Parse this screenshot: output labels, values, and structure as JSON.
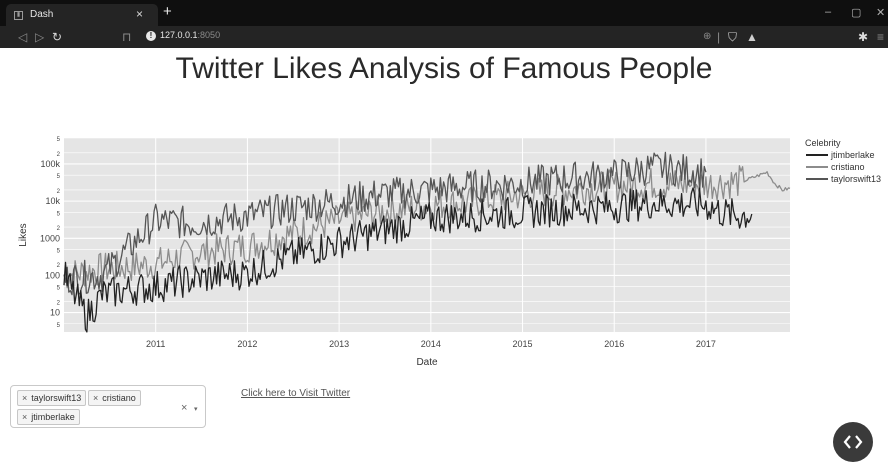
{
  "browser": {
    "tab_title": "Dash",
    "tab_close": "×",
    "new_tab": "+",
    "url_host": "127.0.0.1",
    "url_port": ":8050",
    "window_controls": [
      "–",
      "▢",
      "✕"
    ]
  },
  "page": {
    "title": "Twitter Likes Analysis of Famous People"
  },
  "dropdown": {
    "selected": [
      "taylorswift13",
      "cristiano",
      "jtimberlake"
    ],
    "remove_glyph": "×",
    "clear_glyph": "×",
    "arrow_glyph": "▾"
  },
  "link": {
    "label": "Click here to Visit Twitter"
  },
  "chart_data": {
    "type": "line",
    "xlabel": "Date",
    "ylabel": "Likes",
    "y_scale": "log",
    "ylim": [
      3,
      500000
    ],
    "xlim": [
      "2010-01-01",
      "2017-12-01"
    ],
    "x_ticks": [
      "2011",
      "2012",
      "2013",
      "2014",
      "2015",
      "2016",
      "2017"
    ],
    "y_ticks": [
      "5",
      "10",
      "2",
      "5",
      "100",
      "2",
      "5",
      "1000",
      "2",
      "5",
      "10k",
      "2",
      "5",
      "100k",
      "2",
      "5"
    ],
    "legend_title": "Celebrity",
    "legend_position": "right",
    "grid": true,
    "plot_background": "#e5e5e5",
    "series": [
      {
        "name": "jtimberlake",
        "color": "#222222",
        "points": [
          [
            "2010-01",
            100
          ],
          [
            "2010-02",
            40
          ],
          [
            "2010-04",
            8
          ],
          [
            "2010-06",
            30
          ],
          [
            "2010-09",
            40
          ],
          [
            "2011-01",
            50
          ],
          [
            "2011-06",
            80
          ],
          [
            "2012-01",
            120
          ],
          [
            "2012-06",
            300
          ],
          [
            "2013-01",
            800
          ],
          [
            "2013-06",
            1500
          ],
          [
            "2014-01",
            3500
          ],
          [
            "2014-06",
            4000
          ],
          [
            "2015-01",
            5000
          ],
          [
            "2015-06",
            6000
          ],
          [
            "2016-01",
            7000
          ],
          [
            "2016-06",
            9000
          ],
          [
            "2017-01",
            8000
          ],
          [
            "2017-03",
            5000
          ],
          [
            "2017-05",
            4000
          ],
          [
            "2017-07",
            4500
          ]
        ]
      },
      {
        "name": "cristiano",
        "color": "#8c8c8c",
        "points": [
          [
            "2010-01",
            100
          ],
          [
            "2010-06",
            150
          ],
          [
            "2011-01",
            200
          ],
          [
            "2011-06",
            400
          ],
          [
            "2012-01",
            600
          ],
          [
            "2012-06",
            1200
          ],
          [
            "2013-01",
            3000
          ],
          [
            "2013-06",
            5000
          ],
          [
            "2014-01",
            8000
          ],
          [
            "2014-06",
            9000
          ],
          [
            "2015-01",
            15000
          ],
          [
            "2015-06",
            20000
          ],
          [
            "2016-01",
            25000
          ],
          [
            "2016-06",
            30000
          ],
          [
            "2017-01",
            28000
          ],
          [
            "2017-06",
            35000
          ],
          [
            "2017-09",
            60000
          ],
          [
            "2017-10",
            30000
          ],
          [
            "2017-11",
            20000
          ],
          [
            "2017-12",
            22000
          ]
        ]
      },
      {
        "name": "taylorswift13",
        "color": "#555555",
        "points": [
          [
            "2010-01",
            80
          ],
          [
            "2010-06",
            100
          ],
          [
            "2011-01",
            3000
          ],
          [
            "2011-06",
            2500
          ],
          [
            "2012-01",
            4000
          ],
          [
            "2012-06",
            6000
          ],
          [
            "2013-01",
            10000
          ],
          [
            "2013-06",
            15000
          ],
          [
            "2014-01",
            20000
          ],
          [
            "2014-06",
            25000
          ],
          [
            "2015-01",
            30000
          ],
          [
            "2015-06",
            40000
          ],
          [
            "2016-01",
            50000
          ],
          [
            "2016-06",
            80000
          ],
          [
            "2017-01",
            60000
          ]
        ]
      }
    ]
  }
}
